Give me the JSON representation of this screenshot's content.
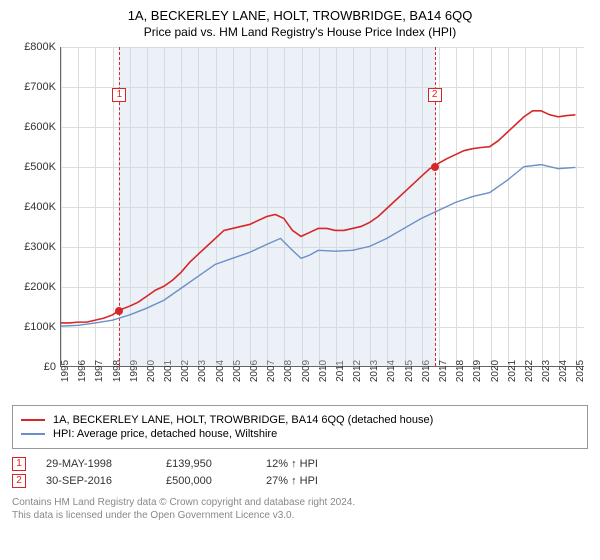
{
  "title": "1A, BECKERLEY LANE, HOLT, TROWBRIDGE, BA14 6QQ",
  "subtitle": "Price paid vs. HM Land Registry's House Price Index (HPI)",
  "chart": {
    "type": "line",
    "xlim": [
      1995,
      2025.5
    ],
    "ylim": [
      0,
      800000
    ],
    "ytick_step": 100000,
    "y_ticks": [
      {
        "v": 0,
        "label": "£0"
      },
      {
        "v": 100000,
        "label": "£100K"
      },
      {
        "v": 200000,
        "label": "£200K"
      },
      {
        "v": 300000,
        "label": "£300K"
      },
      {
        "v": 400000,
        "label": "£400K"
      },
      {
        "v": 500000,
        "label": "£500K"
      },
      {
        "v": 600000,
        "label": "£600K"
      },
      {
        "v": 700000,
        "label": "£700K"
      },
      {
        "v": 800000,
        "label": "£800K"
      }
    ],
    "x_ticks": [
      1995,
      1996,
      1997,
      1998,
      1999,
      2000,
      2001,
      2002,
      2003,
      2004,
      2005,
      2006,
      2007,
      2008,
      2009,
      2010,
      2011,
      2012,
      2013,
      2014,
      2015,
      2016,
      2017,
      2018,
      2019,
      2020,
      2021,
      2022,
      2023,
      2024,
      2025
    ],
    "grid_color": "#dddddd",
    "background_color": "#ffffff",
    "shade_color": "rgba(200,215,235,0.35)",
    "shade_range": [
      1998.4,
      2016.75
    ],
    "series": [
      {
        "name": "price_paid",
        "label": "1A, BECKERLEY LANE, HOLT, TROWBRIDGE, BA14 6QQ (detached house)",
        "color": "#d62728",
        "line_width": 1.6,
        "data": [
          [
            1995.0,
            108000
          ],
          [
            1995.5,
            108000
          ],
          [
            1996.0,
            110000
          ],
          [
            1996.5,
            110000
          ],
          [
            1997.0,
            115000
          ],
          [
            1997.5,
            120000
          ],
          [
            1998.0,
            128000
          ],
          [
            1998.4,
            139950
          ],
          [
            1999.0,
            150000
          ],
          [
            1999.5,
            160000
          ],
          [
            2000.0,
            175000
          ],
          [
            2000.5,
            190000
          ],
          [
            2001.0,
            200000
          ],
          [
            2001.5,
            215000
          ],
          [
            2002.0,
            235000
          ],
          [
            2002.5,
            260000
          ],
          [
            2003.0,
            280000
          ],
          [
            2003.5,
            300000
          ],
          [
            2004.0,
            320000
          ],
          [
            2004.5,
            340000
          ],
          [
            2005.0,
            345000
          ],
          [
            2005.5,
            350000
          ],
          [
            2006.0,
            355000
          ],
          [
            2006.5,
            365000
          ],
          [
            2007.0,
            375000
          ],
          [
            2007.5,
            380000
          ],
          [
            2008.0,
            370000
          ],
          [
            2008.5,
            340000
          ],
          [
            2009.0,
            325000
          ],
          [
            2009.5,
            335000
          ],
          [
            2010.0,
            345000
          ],
          [
            2010.5,
            345000
          ],
          [
            2011.0,
            340000
          ],
          [
            2011.5,
            340000
          ],
          [
            2012.0,
            345000
          ],
          [
            2012.5,
            350000
          ],
          [
            2013.0,
            360000
          ],
          [
            2013.5,
            375000
          ],
          [
            2014.0,
            395000
          ],
          [
            2014.5,
            415000
          ],
          [
            2015.0,
            435000
          ],
          [
            2015.5,
            455000
          ],
          [
            2016.0,
            475000
          ],
          [
            2016.5,
            495000
          ],
          [
            2016.75,
            500000
          ],
          [
            2017.0,
            508000
          ],
          [
            2017.5,
            520000
          ],
          [
            2018.0,
            530000
          ],
          [
            2018.5,
            540000
          ],
          [
            2019.0,
            545000
          ],
          [
            2019.5,
            548000
          ],
          [
            2020.0,
            550000
          ],
          [
            2020.5,
            565000
          ],
          [
            2021.0,
            585000
          ],
          [
            2021.5,
            605000
          ],
          [
            2022.0,
            625000
          ],
          [
            2022.5,
            640000
          ],
          [
            2023.0,
            640000
          ],
          [
            2023.5,
            630000
          ],
          [
            2024.0,
            625000
          ],
          [
            2024.5,
            628000
          ],
          [
            2025.0,
            630000
          ]
        ]
      },
      {
        "name": "hpi",
        "label": "HPI: Average price, detached house, Wiltshire",
        "color": "#6b8fc9",
        "line_width": 1.4,
        "data": [
          [
            1995.0,
            100000
          ],
          [
            1996.0,
            102000
          ],
          [
            1997.0,
            108000
          ],
          [
            1998.0,
            115000
          ],
          [
            1999.0,
            128000
          ],
          [
            2000.0,
            145000
          ],
          [
            2001.0,
            165000
          ],
          [
            2002.0,
            195000
          ],
          [
            2003.0,
            225000
          ],
          [
            2004.0,
            255000
          ],
          [
            2005.0,
            270000
          ],
          [
            2006.0,
            285000
          ],
          [
            2007.0,
            305000
          ],
          [
            2007.8,
            320000
          ],
          [
            2008.5,
            290000
          ],
          [
            2009.0,
            270000
          ],
          [
            2009.5,
            278000
          ],
          [
            2010.0,
            290000
          ],
          [
            2011.0,
            288000
          ],
          [
            2012.0,
            290000
          ],
          [
            2013.0,
            300000
          ],
          [
            2014.0,
            320000
          ],
          [
            2015.0,
            345000
          ],
          [
            2016.0,
            370000
          ],
          [
            2017.0,
            390000
          ],
          [
            2018.0,
            410000
          ],
          [
            2019.0,
            425000
          ],
          [
            2020.0,
            435000
          ],
          [
            2021.0,
            465000
          ],
          [
            2022.0,
            500000
          ],
          [
            2023.0,
            505000
          ],
          [
            2024.0,
            495000
          ],
          [
            2025.0,
            498000
          ]
        ]
      }
    ],
    "markers": [
      {
        "n": "1",
        "x": 1998.4,
        "y": 139950,
        "label_y": 680000
      },
      {
        "n": "2",
        "x": 2016.75,
        "y": 500000,
        "label_y": 680000
      }
    ],
    "marker_color": "#d62728"
  },
  "legend": {
    "items": [
      {
        "color": "#d62728",
        "label": "1A, BECKERLEY LANE, HOLT, TROWBRIDGE, BA14 6QQ (detached house)"
      },
      {
        "color": "#6b8fc9",
        "label": "HPI: Average price, detached house, Wiltshire"
      }
    ]
  },
  "sales": [
    {
      "n": "1",
      "date": "29-MAY-1998",
      "price": "£139,950",
      "hpi": "12% ↑ HPI"
    },
    {
      "n": "2",
      "date": "30-SEP-2016",
      "price": "£500,000",
      "hpi": "27% ↑ HPI"
    }
  ],
  "attribution_line1": "Contains HM Land Registry data © Crown copyright and database right 2024.",
  "attribution_line2": "This data is licensed under the Open Government Licence v3.0."
}
